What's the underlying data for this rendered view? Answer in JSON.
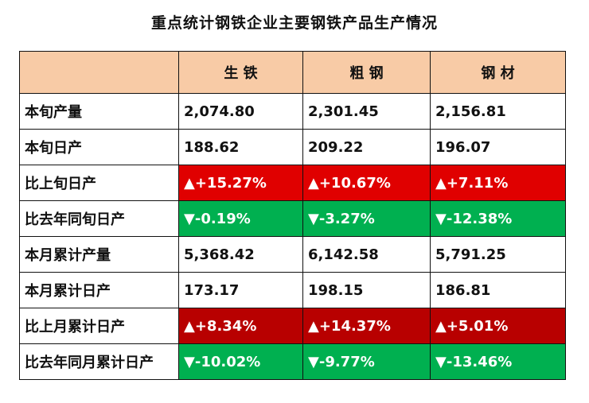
{
  "title": "重点统计钢铁企业主要钢铁产品生产情况",
  "header": [
    "",
    "生 铁",
    "粗 钢",
    "钢 材"
  ],
  "rows": [
    {
      "label": "本旬产量",
      "values": [
        "2,074.80",
        "2,301.45",
        "2,156.81"
      ],
      "style": ""
    },
    {
      "label": "本旬日产",
      "values": [
        "188.62",
        "209.22",
        "196.07"
      ],
      "style": ""
    },
    {
      "label": "比上旬日产",
      "values": [
        "▲+15.27%",
        "▲+10.67%",
        "▲+7.11%"
      ],
      "style": "up"
    },
    {
      "label": "比去年同旬日产",
      "values": [
        "▼-0.19%",
        "▼-3.27%",
        "▼-12.38%"
      ],
      "style": "down"
    },
    {
      "label": "本月累计产量",
      "values": [
        "5,368.42",
        "6,142.58",
        "5,791.25"
      ],
      "style": ""
    },
    {
      "label": "本月累计日产",
      "values": [
        "173.17",
        "198.15",
        "186.81"
      ],
      "style": ""
    },
    {
      "label": "比上月累计日产",
      "values": [
        "▲+8.34%",
        "▲+14.37%",
        "▲+5.01%"
      ],
      "style": "up-dark"
    },
    {
      "label": "比去年同月累计日产",
      "values": [
        "▼-10.02%",
        "▼-9.77%",
        "▼-13.46%"
      ],
      "style": "down"
    }
  ],
  "colors": {
    "header_bg": "#f8cba6",
    "increase_bg": "#e00000",
    "increase_dark_bg": "#b80000",
    "decrease_bg": "#00b050"
  }
}
